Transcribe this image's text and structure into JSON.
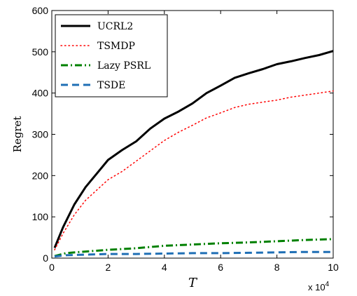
{
  "chart_data": {
    "type": "line",
    "xlabel": "T",
    "ylabel": "Regret",
    "x_multiplier": "x 10",
    "x_multiplier_exp": "4",
    "xlim": [
      0,
      10
    ],
    "ylim": [
      0,
      600
    ],
    "xticks": [
      "0",
      "2",
      "4",
      "6",
      "8",
      "10"
    ],
    "yticks": [
      "0",
      "100",
      "200",
      "300",
      "400",
      "500",
      "600"
    ],
    "legend_position": "top-left",
    "grid": false,
    "series": [
      {
        "name": "UCRL2",
        "color": "#000000",
        "style": "solid",
        "x": [
          0.1,
          0.4,
          0.8,
          1.2,
          1.6,
          2.0,
          2.5,
          3.0,
          3.5,
          4.0,
          4.5,
          5.0,
          5.5,
          6.0,
          6.5,
          7.0,
          7.5,
          8.0,
          8.5,
          9.0,
          9.5,
          10.0
        ],
        "y": [
          25,
          75,
          130,
          172,
          205,
          238,
          262,
          283,
          314,
          338,
          355,
          375,
          400,
          418,
          437,
          448,
          458,
          470,
          477,
          485,
          492,
          502
        ]
      },
      {
        "name": "TSMDP",
        "color": "#ff0000",
        "style": "dotted",
        "x": [
          0.1,
          0.4,
          0.8,
          1.2,
          1.6,
          2.0,
          2.5,
          3.0,
          3.5,
          4.0,
          4.5,
          5.0,
          5.5,
          6.0,
          6.5,
          7.0,
          7.5,
          8.0,
          8.5,
          9.0,
          9.5,
          10.0
        ],
        "y": [
          20,
          60,
          105,
          140,
          165,
          190,
          210,
          235,
          260,
          285,
          305,
          322,
          340,
          352,
          365,
          373,
          378,
          383,
          390,
          395,
          400,
          405
        ]
      },
      {
        "name": "Lazy PSRL",
        "color": "#008000",
        "style": "dashdot",
        "x": [
          0.1,
          0.5,
          1.0,
          2.0,
          3.0,
          4.0,
          5.0,
          6.0,
          7.0,
          8.0,
          9.0,
          10.0
        ],
        "y": [
          5,
          12,
          15,
          20,
          24,
          30,
          33,
          36,
          38,
          41,
          44,
          46
        ]
      },
      {
        "name": "TSDE",
        "color": "#1f6fb5",
        "style": "dashed",
        "x": [
          0.1,
          0.5,
          1.0,
          2.0,
          3.0,
          4.0,
          5.0,
          6.0,
          7.0,
          8.0,
          9.0,
          10.0
        ],
        "y": [
          4,
          7,
          8,
          10,
          10,
          11,
          12,
          12,
          13,
          14,
          15,
          15
        ]
      }
    ]
  }
}
